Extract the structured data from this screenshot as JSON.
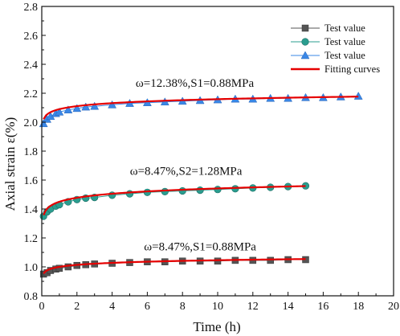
{
  "chart_data": {
    "type": "scatter",
    "title": "",
    "xlabel": "Time (h)",
    "ylabel": "Axial strain ε(%)",
    "xlim": [
      0,
      20
    ],
    "ylim": [
      0.8,
      2.8
    ],
    "x_ticks": [
      0,
      2,
      4,
      6,
      8,
      10,
      12,
      14,
      16,
      18,
      20
    ],
    "y_ticks": [
      0.8,
      1.0,
      1.2,
      1.4,
      1.6,
      1.8,
      2.0,
      2.2,
      2.4,
      2.6,
      2.8
    ],
    "grid": false,
    "legend_position": "top-right",
    "legend": [
      {
        "label": "Test value",
        "marker": "square",
        "color": "#555555"
      },
      {
        "label": "Test value",
        "marker": "circle",
        "color": "#2a9d8f"
      },
      {
        "label": "Test value",
        "marker": "triangle",
        "color": "#3a87e6"
      },
      {
        "label": "Fitting curves",
        "marker": "line",
        "color": "#e60000"
      }
    ],
    "series": [
      {
        "marker": "square",
        "color": "#555555",
        "x": [
          0.1,
          0.3,
          0.5,
          0.8,
          1.0,
          1.5,
          2.0,
          2.5,
          3.0,
          4.0,
          5.0,
          6.0,
          7.0,
          8.0,
          9.0,
          10.0,
          11.0,
          12.0,
          13.0,
          14.0,
          15.0
        ],
        "y": [
          0.95,
          0.96,
          0.975,
          0.985,
          0.99,
          1.0,
          1.01,
          1.015,
          1.02,
          1.025,
          1.03,
          1.035,
          1.035,
          1.04,
          1.04,
          1.04,
          1.045,
          1.045,
          1.045,
          1.05,
          1.05
        ]
      },
      {
        "marker": "circle",
        "color": "#2a9d8f",
        "x": [
          0.1,
          0.3,
          0.5,
          0.8,
          1.0,
          1.5,
          2.0,
          2.5,
          3.0,
          4.0,
          5.0,
          6.0,
          7.0,
          8.0,
          9.0,
          10.0,
          11.0,
          12.0,
          13.0,
          14.0,
          15.0
        ],
        "y": [
          1.35,
          1.38,
          1.4,
          1.42,
          1.43,
          1.45,
          1.465,
          1.475,
          1.48,
          1.495,
          1.505,
          1.515,
          1.52,
          1.525,
          1.53,
          1.535,
          1.54,
          1.545,
          1.55,
          1.555,
          1.56
        ]
      },
      {
        "marker": "triangle",
        "color": "#3a87e6",
        "x": [
          0.1,
          0.3,
          0.5,
          0.8,
          1.0,
          1.5,
          2.0,
          2.5,
          3.0,
          4.0,
          5.0,
          6.0,
          7.0,
          8.0,
          9.0,
          10.0,
          11.0,
          12.0,
          13.0,
          14.0,
          15.0,
          16.0,
          17.0,
          18.0
        ],
        "y": [
          1.99,
          2.02,
          2.04,
          2.06,
          2.07,
          2.085,
          2.095,
          2.105,
          2.11,
          2.12,
          2.13,
          2.135,
          2.14,
          2.145,
          2.15,
          2.155,
          2.16,
          2.16,
          2.165,
          2.165,
          2.17,
          2.17,
          2.175,
          2.18
        ]
      }
    ],
    "fitting_curves": [
      {
        "a": 1.0,
        "b": 0.02,
        "xmax": 15
      },
      {
        "a": 1.45,
        "b": 0.04,
        "xmax": 15
      },
      {
        "a": 2.09,
        "b": 0.03,
        "xmax": 18
      }
    ],
    "annotations": [
      {
        "text": "ω=12.38%,S1=0.88MPa",
        "x": 8.7,
        "y": 2.245
      },
      {
        "text": "ω=8.47%,S2=1.28MPa",
        "x": 8.2,
        "y": 1.635
      },
      {
        "text": "ω=8.47%,S1=0.88MPa",
        "x": 9.0,
        "y": 1.115
      }
    ]
  }
}
